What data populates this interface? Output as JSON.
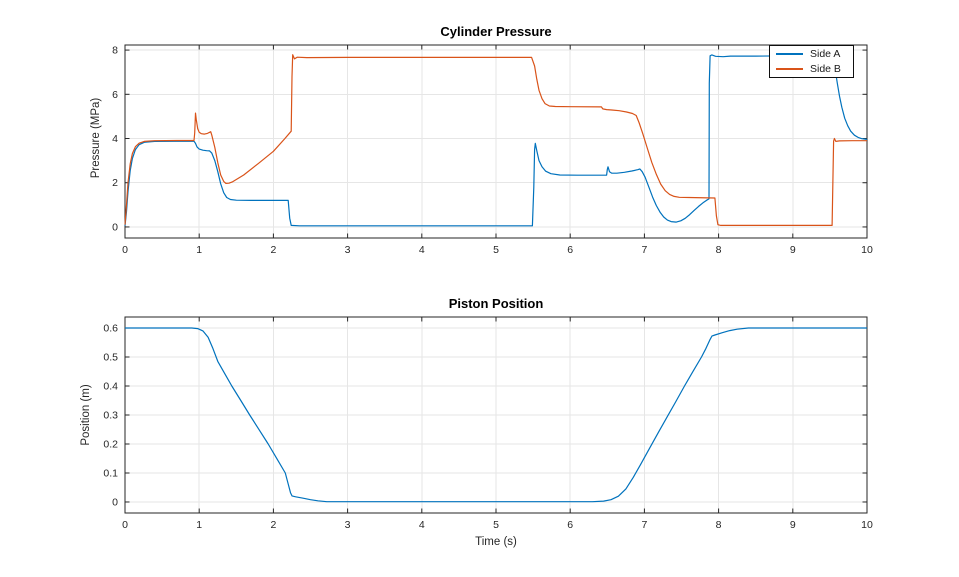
{
  "window": {
    "background": "#ffffff"
  },
  "styles": {
    "axis_color": "#262626",
    "grid_color": "#e6e6e6",
    "tick_label_color": "#262626",
    "title_color": "#000000",
    "legend_border": "#0f0f0f",
    "legend_bg": "#ffffff",
    "side_a_color": "#0072BD",
    "side_b_color": "#D95319"
  },
  "chart_data": [
    {
      "type": "line",
      "title": "Cylinder Pressure",
      "xlabel": "",
      "ylabel": "Pressure (MPa)",
      "xlim": [
        0,
        10
      ],
      "ylim": [
        -0.5,
        8.23
      ],
      "grid": true,
      "xticks": [
        0,
        1,
        2,
        3,
        4,
        5,
        6,
        7,
        8,
        9,
        10
      ],
      "xtick_labels": [
        "0",
        "1",
        "2",
        "3",
        "4",
        "5",
        "6",
        "7",
        "8",
        "9",
        "10"
      ],
      "yticks": [
        0,
        2,
        4,
        6,
        8
      ],
      "ytick_labels": [
        "0",
        "2",
        "4",
        "6",
        "8"
      ],
      "legend": {
        "position": "northeast",
        "entries": [
          "Side A",
          "Side B"
        ]
      },
      "series": [
        {
          "name": "Side A",
          "color": "#0072BD",
          "points": [
            [
              0,
              0.05
            ],
            [
              0.02,
              0.7
            ],
            [
              0.04,
              1.6
            ],
            [
              0.07,
              2.55
            ],
            [
              0.1,
              3.1
            ],
            [
              0.14,
              3.5
            ],
            [
              0.19,
              3.72
            ],
            [
              0.26,
              3.83
            ],
            [
              0.4,
              3.87
            ],
            [
              0.93,
              3.88
            ],
            [
              0.95,
              3.78
            ],
            [
              0.97,
              3.62
            ],
            [
              1.0,
              3.52
            ],
            [
              1.05,
              3.47
            ],
            [
              1.1,
              3.45
            ],
            [
              1.14,
              3.44
            ],
            [
              1.17,
              3.34
            ],
            [
              1.21,
              3.0
            ],
            [
              1.25,
              2.5
            ],
            [
              1.29,
              1.95
            ],
            [
              1.33,
              1.55
            ],
            [
              1.37,
              1.33
            ],
            [
              1.42,
              1.24
            ],
            [
              1.5,
              1.21
            ],
            [
              1.7,
              1.2
            ],
            [
              2.2,
              1.2
            ],
            [
              2.22,
              0.4
            ],
            [
              2.24,
              0.07
            ],
            [
              2.35,
              0.05
            ],
            [
              3,
              0.05
            ],
            [
              4,
              0.05
            ],
            [
              5,
              0.05
            ],
            [
              5.49,
              0.05
            ],
            [
              5.51,
              1.8
            ],
            [
              5.52,
              3.5
            ],
            [
              5.53,
              3.78
            ],
            [
              5.55,
              3.45
            ],
            [
              5.58,
              3.0
            ],
            [
              5.62,
              2.72
            ],
            [
              5.67,
              2.52
            ],
            [
              5.74,
              2.41
            ],
            [
              5.86,
              2.35
            ],
            [
              6.1,
              2.34
            ],
            [
              6.49,
              2.34
            ],
            [
              6.5,
              2.6
            ],
            [
              6.51,
              2.72
            ],
            [
              6.53,
              2.5
            ],
            [
              6.56,
              2.43
            ],
            [
              6.63,
              2.43
            ],
            [
              6.73,
              2.47
            ],
            [
              6.83,
              2.53
            ],
            [
              6.91,
              2.59
            ],
            [
              6.94,
              2.62
            ],
            [
              6.97,
              2.5
            ],
            [
              7.01,
              2.25
            ],
            [
              7.06,
              1.8
            ],
            [
              7.11,
              1.35
            ],
            [
              7.16,
              0.97
            ],
            [
              7.21,
              0.67
            ],
            [
              7.26,
              0.45
            ],
            [
              7.31,
              0.31
            ],
            [
              7.36,
              0.24
            ],
            [
              7.43,
              0.22
            ],
            [
              7.49,
              0.28
            ],
            [
              7.55,
              0.39
            ],
            [
              7.61,
              0.56
            ],
            [
              7.67,
              0.75
            ],
            [
              7.73,
              0.93
            ],
            [
              7.79,
              1.09
            ],
            [
              7.84,
              1.21
            ],
            [
              7.87,
              1.27
            ],
            [
              7.875,
              6.5
            ],
            [
              7.885,
              7.74
            ],
            [
              7.91,
              7.78
            ],
            [
              7.96,
              7.72
            ],
            [
              8.06,
              7.7
            ],
            [
              8.16,
              7.73
            ],
            [
              8.5,
              7.73
            ],
            [
              9.0,
              7.74
            ],
            [
              9.54,
              7.74
            ],
            [
              9.57,
              7.15
            ],
            [
              9.6,
              6.5
            ],
            [
              9.63,
              5.92
            ],
            [
              9.66,
              5.42
            ],
            [
              9.7,
              4.92
            ],
            [
              9.74,
              4.58
            ],
            [
              9.78,
              4.33
            ],
            [
              9.83,
              4.15
            ],
            [
              9.88,
              4.05
            ],
            [
              9.93,
              3.99
            ],
            [
              10,
              3.96
            ]
          ]
        },
        {
          "name": "Side B",
          "color": "#D95319",
          "points": [
            [
              0,
              0.1
            ],
            [
              0.02,
              1.0
            ],
            [
              0.04,
              2.0
            ],
            [
              0.07,
              2.85
            ],
            [
              0.1,
              3.32
            ],
            [
              0.14,
              3.63
            ],
            [
              0.19,
              3.79
            ],
            [
              0.26,
              3.87
            ],
            [
              0.4,
              3.9
            ],
            [
              0.7,
              3.91
            ],
            [
              0.93,
              3.91
            ],
            [
              0.94,
              4.25
            ],
            [
              0.95,
              5.15
            ],
            [
              0.96,
              4.88
            ],
            [
              0.98,
              4.45
            ],
            [
              1.0,
              4.28
            ],
            [
              1.03,
              4.22
            ],
            [
              1.07,
              4.2
            ],
            [
              1.11,
              4.23
            ],
            [
              1.14,
              4.28
            ],
            [
              1.155,
              4.31
            ],
            [
              1.17,
              4.15
            ],
            [
              1.21,
              3.6
            ],
            [
              1.25,
              2.9
            ],
            [
              1.29,
              2.35
            ],
            [
              1.33,
              2.06
            ],
            [
              1.36,
              1.97
            ],
            [
              1.4,
              1.98
            ],
            [
              1.45,
              2.04
            ],
            [
              1.6,
              2.35
            ],
            [
              1.8,
              2.88
            ],
            [
              2.0,
              3.42
            ],
            [
              2.15,
              3.98
            ],
            [
              2.24,
              4.33
            ],
            [
              2.25,
              6.8
            ],
            [
              2.26,
              7.79
            ],
            [
              2.285,
              7.6
            ],
            [
              2.32,
              7.68
            ],
            [
              2.45,
              7.66
            ],
            [
              3,
              7.67
            ],
            [
              4,
              7.67
            ],
            [
              5,
              7.67
            ],
            [
              5.48,
              7.67
            ],
            [
              5.52,
              7.28
            ],
            [
              5.55,
              6.68
            ],
            [
              5.58,
              6.18
            ],
            [
              5.62,
              5.8
            ],
            [
              5.66,
              5.58
            ],
            [
              5.72,
              5.47
            ],
            [
              5.8,
              5.45
            ],
            [
              6.0,
              5.44
            ],
            [
              6.42,
              5.43
            ],
            [
              6.44,
              5.34
            ],
            [
              6.49,
              5.31
            ],
            [
              6.56,
              5.29
            ],
            [
              6.66,
              5.26
            ],
            [
              6.76,
              5.2
            ],
            [
              6.84,
              5.13
            ],
            [
              6.89,
              5.04
            ],
            [
              6.93,
              4.7
            ],
            [
              6.98,
              4.2
            ],
            [
              7.04,
              3.55
            ],
            [
              7.1,
              2.92
            ],
            [
              7.16,
              2.38
            ],
            [
              7.22,
              1.94
            ],
            [
              7.28,
              1.64
            ],
            [
              7.34,
              1.47
            ],
            [
              7.4,
              1.38
            ],
            [
              7.47,
              1.34
            ],
            [
              7.6,
              1.33
            ],
            [
              7.95,
              1.31
            ],
            [
              7.97,
              0.5
            ],
            [
              7.99,
              0.1
            ],
            [
              8.03,
              0.07
            ],
            [
              8.5,
              0.07
            ],
            [
              9.0,
              0.07
            ],
            [
              9.53,
              0.07
            ],
            [
              9.55,
              3.88
            ],
            [
              9.56,
              4.0
            ],
            [
              9.58,
              3.87
            ],
            [
              9.63,
              3.89
            ],
            [
              9.8,
              3.9
            ],
            [
              10,
              3.9
            ]
          ]
        }
      ]
    },
    {
      "type": "line",
      "title": "Piston Position",
      "xlabel": "Time (s)",
      "ylabel": "Position (m)",
      "xlim": [
        0,
        10
      ],
      "ylim": [
        -0.038,
        0.638
      ],
      "grid": true,
      "xticks": [
        0,
        1,
        2,
        3,
        4,
        5,
        6,
        7,
        8,
        9,
        10
      ],
      "xtick_labels": [
        "0",
        "1",
        "2",
        "3",
        "4",
        "5",
        "6",
        "7",
        "8",
        "9",
        "10"
      ],
      "yticks": [
        0,
        0.1,
        0.2,
        0.3,
        0.4,
        0.5,
        0.6
      ],
      "ytick_labels": [
        "0",
        "0.1",
        "0.2",
        "0.3",
        "0.4",
        "0.5",
        "0.6"
      ],
      "series": [
        {
          "name": "Position",
          "color": "#0072BD",
          "points": [
            [
              0,
              0.6
            ],
            [
              0.9,
              0.6
            ],
            [
              0.98,
              0.598
            ],
            [
              1.05,
              0.59
            ],
            [
              1.12,
              0.568
            ],
            [
              1.18,
              0.532
            ],
            [
              1.25,
              0.485
            ],
            [
              1.35,
              0.44
            ],
            [
              1.44,
              0.4
            ],
            [
              1.56,
              0.35
            ],
            [
              1.68,
              0.3
            ],
            [
              1.8,
              0.252
            ],
            [
              1.93,
              0.2
            ],
            [
              2.05,
              0.148
            ],
            [
              2.16,
              0.1
            ],
            [
              2.2,
              0.062
            ],
            [
              2.23,
              0.032
            ],
            [
              2.25,
              0.021
            ],
            [
              2.3,
              0.018
            ],
            [
              2.4,
              0.013
            ],
            [
              2.5,
              0.008
            ],
            [
              2.6,
              0.004
            ],
            [
              2.72,
              0.001
            ],
            [
              3.0,
              0.001
            ],
            [
              4.0,
              0.001
            ],
            [
              5.0,
              0.001
            ],
            [
              6.3,
              0.001
            ],
            [
              6.45,
              0.003
            ],
            [
              6.55,
              0.008
            ],
            [
              6.65,
              0.02
            ],
            [
              6.75,
              0.045
            ],
            [
              6.85,
              0.085
            ],
            [
              6.95,
              0.13
            ],
            [
              7.08,
              0.19
            ],
            [
              7.2,
              0.245
            ],
            [
              7.31,
              0.295
            ],
            [
              7.42,
              0.345
            ],
            [
              7.54,
              0.4
            ],
            [
              7.65,
              0.448
            ],
            [
              7.77,
              0.5
            ],
            [
              7.83,
              0.53
            ],
            [
              7.88,
              0.558
            ],
            [
              7.91,
              0.572
            ],
            [
              7.95,
              0.576
            ],
            [
              8.05,
              0.584
            ],
            [
              8.15,
              0.591
            ],
            [
              8.25,
              0.596
            ],
            [
              8.4,
              0.6
            ],
            [
              9.0,
              0.6
            ],
            [
              10,
              0.6
            ]
          ]
        }
      ]
    }
  ]
}
